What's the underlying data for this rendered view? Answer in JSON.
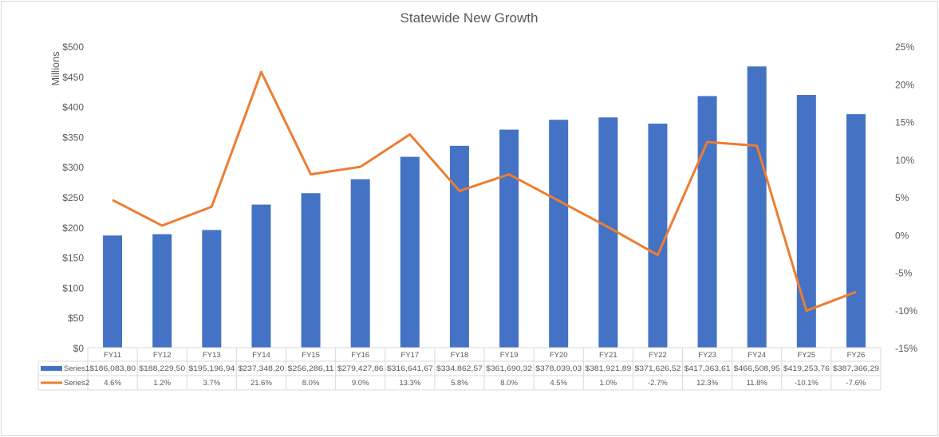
{
  "chart_data": {
    "type": "bar+line",
    "title": "Statewide New Growth",
    "ylabel": "Millions",
    "categories": [
      "FY11",
      "FY12",
      "FY13",
      "FY14",
      "FY15",
      "FY16",
      "FY17",
      "FY18",
      "FY19",
      "FY20",
      "FY21",
      "FY22",
      "FY23",
      "FY24",
      "FY25",
      "FY26"
    ],
    "ylim": [
      0,
      500
    ],
    "y_ticks": [
      "$0",
      "$50",
      "$100",
      "$150",
      "$200",
      "$250",
      "$300",
      "$350",
      "$400",
      "$450",
      "$500"
    ],
    "y2lim": [
      -15,
      25
    ],
    "y2_ticks": [
      "-15%",
      "-10%",
      "-5%",
      "0%",
      "5%",
      "10%",
      "15%",
      "20%",
      "25%"
    ],
    "grid": false,
    "legend": "data-table",
    "series": [
      {
        "name": "Series1",
        "type": "bar",
        "axis": "left",
        "color": "#4472C4",
        "values_millions": [
          186.08,
          188.23,
          195.2,
          237.35,
          256.29,
          279.43,
          316.64,
          334.86,
          361.69,
          378.04,
          381.92,
          371.63,
          417.36,
          466.51,
          419.25,
          387.37
        ],
        "labels": [
          "$186,083,80",
          "$188,229,50",
          "$195,196,94",
          "$237,348,20",
          "$256,286,11",
          "$279,427,86",
          "$316,641,67",
          "$334,862,57",
          "$361,690,32",
          "$378,039,03",
          "$381,921,89",
          "$371,626,52",
          "$417,363,61",
          "$466,508,95",
          "$419,253,76",
          "$387,366,29"
        ]
      },
      {
        "name": "Series2",
        "type": "line",
        "axis": "right",
        "color": "#ED7D31",
        "values": [
          4.6,
          1.2,
          3.7,
          21.6,
          8.0,
          9.0,
          13.3,
          5.8,
          8.0,
          4.5,
          1.0,
          -2.7,
          12.3,
          11.8,
          -10.1,
          -7.6
        ],
        "labels": [
          "4.6%",
          "1.2%",
          "3.7%",
          "21.6%",
          "8.0%",
          "9.0%",
          "13.3%",
          "5.8%",
          "8.0%",
          "4.5%",
          "1.0%",
          "-2.7%",
          "12.3%",
          "11.8%",
          "-10.1%",
          "-7.6%"
        ]
      }
    ]
  }
}
